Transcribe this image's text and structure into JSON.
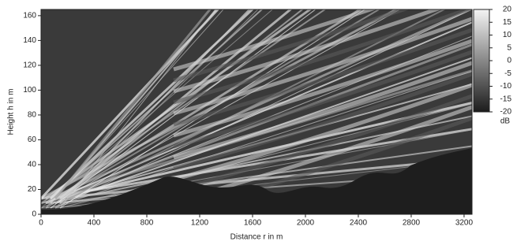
{
  "chart_data": {
    "type": "heatmap",
    "xlabel": "Distance r in m",
    "ylabel": "Height h in m",
    "xlim": [
      0,
      3260
    ],
    "xticks": [
      0,
      400,
      800,
      1200,
      1600,
      2000,
      2400,
      2800,
      3200
    ],
    "ylim": [
      0,
      165
    ],
    "yticks": [
      0,
      20,
      40,
      60,
      80,
      100,
      120,
      140,
      160
    ],
    "colorbar": {
      "lim": [
        -20,
        20
      ],
      "ticks": [
        20,
        15,
        10,
        5,
        0,
        -5,
        -10,
        -15,
        -20
      ],
      "label": "dB",
      "colors": [
        "#1c1c1c",
        "#f4f4f4"
      ]
    }
  }
}
